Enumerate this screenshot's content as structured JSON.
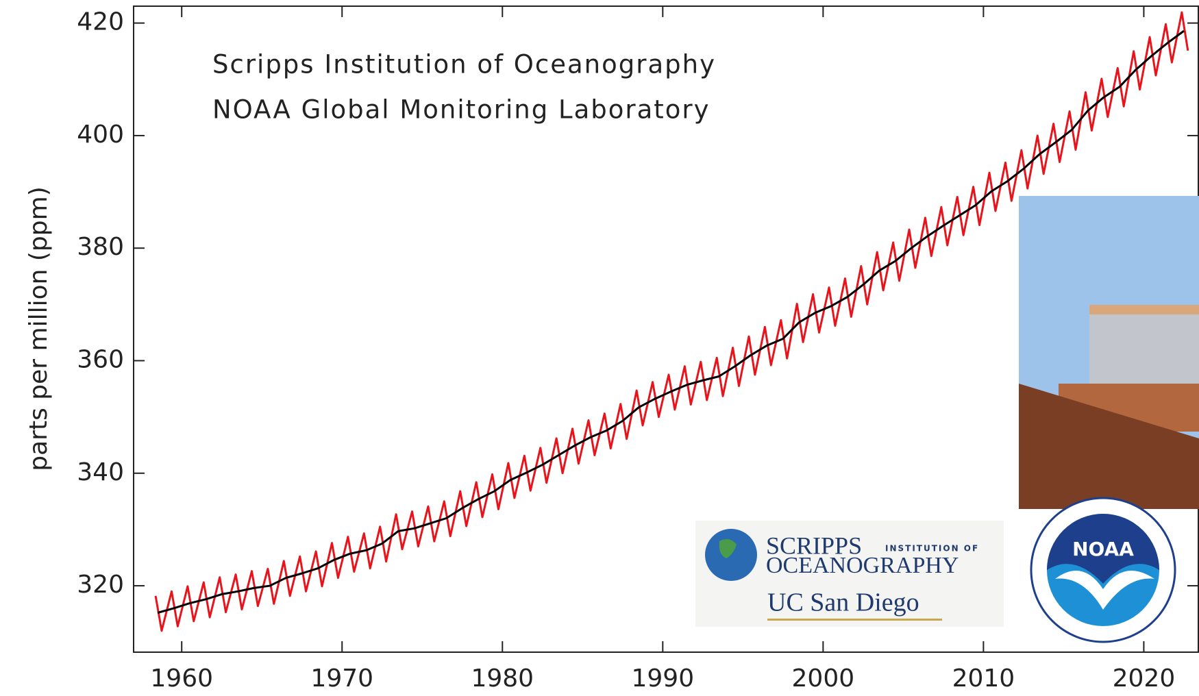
{
  "chart_data": {
    "type": "line",
    "annotations": [
      "Scripps Institution of Oceanography",
      "NOAA Global Monitoring Laboratory"
    ],
    "y_label": "parts per million (ppm)",
    "xlim": [
      1957,
      2023.4
    ],
    "ylim": [
      308.2,
      423
    ],
    "xticks": [
      1960,
      1970,
      1980,
      1990,
      2000,
      2010,
      2020
    ],
    "yticks": [
      320,
      340,
      360,
      380,
      400,
      420
    ],
    "series": [
      {
        "color": "#e8141c",
        "x": [
          1958.37,
          1958.75,
          1959.37,
          1959.75,
          1960.37,
          1960.75,
          1961.37,
          1961.75,
          1962.37,
          1962.75,
          1963.37,
          1963.75,
          1964.37,
          1964.75,
          1965.37,
          1965.75,
          1966.37,
          1966.75,
          1967.37,
          1967.75,
          1968.37,
          1968.75,
          1969.37,
          1969.75,
          1970.37,
          1970.75,
          1971.37,
          1971.75,
          1972.37,
          1972.75,
          1973.37,
          1973.75,
          1974.37,
          1974.75,
          1975.37,
          1975.75,
          1976.37,
          1976.75,
          1977.37,
          1977.75,
          1978.37,
          1978.75,
          1979.37,
          1979.75,
          1980.37,
          1980.75,
          1981.37,
          1981.75,
          1982.37,
          1982.75,
          1983.37,
          1983.75,
          1984.37,
          1984.75,
          1985.37,
          1985.75,
          1986.37,
          1986.75,
          1987.37,
          1987.75,
          1988.37,
          1988.75,
          1989.37,
          1989.75,
          1990.37,
          1990.75,
          1991.37,
          1991.75,
          1992.37,
          1992.75,
          1993.37,
          1993.75,
          1994.37,
          1994.75,
          1995.37,
          1995.75,
          1996.37,
          1996.75,
          1997.37,
          1997.75,
          1998.37,
          1998.75,
          1999.37,
          1999.75,
          2000.37,
          2000.75,
          2001.37,
          2001.75,
          2002.37,
          2002.75,
          2003.37,
          2003.75,
          2004.37,
          2004.75,
          2005.37,
          2005.75,
          2006.37,
          2006.75,
          2007.37,
          2007.75,
          2008.37,
          2008.75,
          2009.37,
          2009.75,
          2010.37,
          2010.75,
          2011.37,
          2011.75,
          2012.37,
          2012.75,
          2013.37,
          2013.75,
          2014.37,
          2014.75,
          2015.37,
          2015.75,
          2016.37,
          2016.75,
          2017.37,
          2017.75,
          2018.37,
          2018.75,
          2019.37,
          2019.75,
          2020.37,
          2020.75,
          2021.37,
          2021.75,
          2022.37,
          2022.75
        ],
        "values": [
          318.2,
          312.0,
          319.0,
          312.8,
          319.9,
          313.7,
          320.6,
          314.4,
          321.5,
          315.3,
          322.0,
          315.8,
          322.6,
          316.4,
          323.0,
          316.8,
          324.4,
          318.2,
          325.2,
          319.0,
          326.1,
          319.9,
          327.6,
          321.4,
          328.7,
          322.5,
          329.3,
          323.1,
          330.5,
          324.3,
          332.7,
          326.5,
          333.2,
          327.0,
          334.1,
          327.9,
          335.0,
          328.8,
          336.8,
          330.6,
          338.4,
          332.2,
          339.8,
          333.6,
          341.8,
          335.6,
          343.1,
          336.9,
          344.5,
          338.3,
          346.2,
          340.0,
          347.9,
          341.7,
          349.4,
          343.2,
          350.6,
          344.4,
          352.3,
          346.1,
          354.7,
          348.5,
          356.2,
          350.0,
          357.5,
          351.3,
          359.0,
          352.2,
          359.8,
          353.0,
          360.5,
          353.7,
          362.3,
          355.5,
          364.3,
          357.5,
          366.0,
          359.2,
          367.2,
          360.4,
          370.1,
          363.3,
          371.8,
          365.0,
          373.0,
          366.2,
          374.6,
          367.8,
          376.8,
          370.0,
          379.3,
          372.5,
          381.0,
          374.2,
          383.3,
          376.5,
          385.4,
          378.6,
          387.3,
          380.5,
          389.1,
          382.3,
          390.9,
          384.1,
          393.4,
          386.6,
          395.2,
          388.4,
          397.4,
          390.6,
          400.0,
          393.2,
          402.1,
          395.3,
          404.3,
          397.5,
          407.7,
          400.9,
          410.1,
          403.3,
          412.0,
          405.2,
          415.0,
          408.2,
          417.5,
          410.7,
          419.8,
          413.0,
          421.9,
          415.1
        ]
      },
      {
        "color": "#000000",
        "x": [
          1958.5,
          1959.5,
          1960.5,
          1961.5,
          1962.5,
          1963.5,
          1964.5,
          1965.5,
          1966.5,
          1967.5,
          1968.5,
          1969.5,
          1970.5,
          1971.5,
          1972.5,
          1973.5,
          1974.5,
          1975.5,
          1976.5,
          1977.5,
          1978.5,
          1979.5,
          1980.5,
          1981.5,
          1982.5,
          1983.5,
          1984.5,
          1985.5,
          1986.5,
          1987.5,
          1988.5,
          1989.5,
          1990.5,
          1991.5,
          1992.5,
          1993.5,
          1994.5,
          1995.5,
          1996.5,
          1997.5,
          1998.5,
          1999.5,
          2000.5,
          2001.5,
          2002.5,
          2003.5,
          2004.5,
          2005.5,
          2006.5,
          2007.5,
          2008.5,
          2009.5,
          2010.5,
          2011.5,
          2012.5,
          2013.5,
          2014.5,
          2015.5,
          2016.5,
          2017.5,
          2018.5,
          2019.5,
          2020.5,
          2021.5,
          2022.5
        ],
        "values": [
          315.2,
          316.0,
          316.9,
          317.6,
          318.5,
          319.0,
          319.6,
          320.0,
          321.4,
          322.2,
          323.1,
          324.6,
          325.7,
          326.3,
          327.5,
          329.7,
          330.2,
          331.1,
          332.0,
          333.8,
          335.4,
          336.8,
          338.8,
          340.1,
          341.5,
          343.2,
          344.9,
          346.4,
          347.6,
          349.3,
          351.7,
          353.2,
          354.5,
          355.7,
          356.5,
          357.2,
          359.0,
          361.0,
          362.7,
          363.9,
          366.8,
          368.5,
          369.7,
          371.3,
          373.5,
          376.0,
          377.7,
          380.0,
          382.1,
          384.0,
          385.8,
          387.6,
          390.1,
          391.9,
          394.1,
          396.7,
          398.8,
          401.0,
          404.4,
          406.8,
          408.7,
          411.7,
          414.2,
          416.5,
          418.6
        ]
      }
    ]
  },
  "logos": {
    "scripps": "SCRIPPS",
    "institution_of": "INSTITUTION OF",
    "oceanography": "OCEANOGRAPHY",
    "ucsd": "UC San Diego",
    "noaa": "NOAA"
  }
}
